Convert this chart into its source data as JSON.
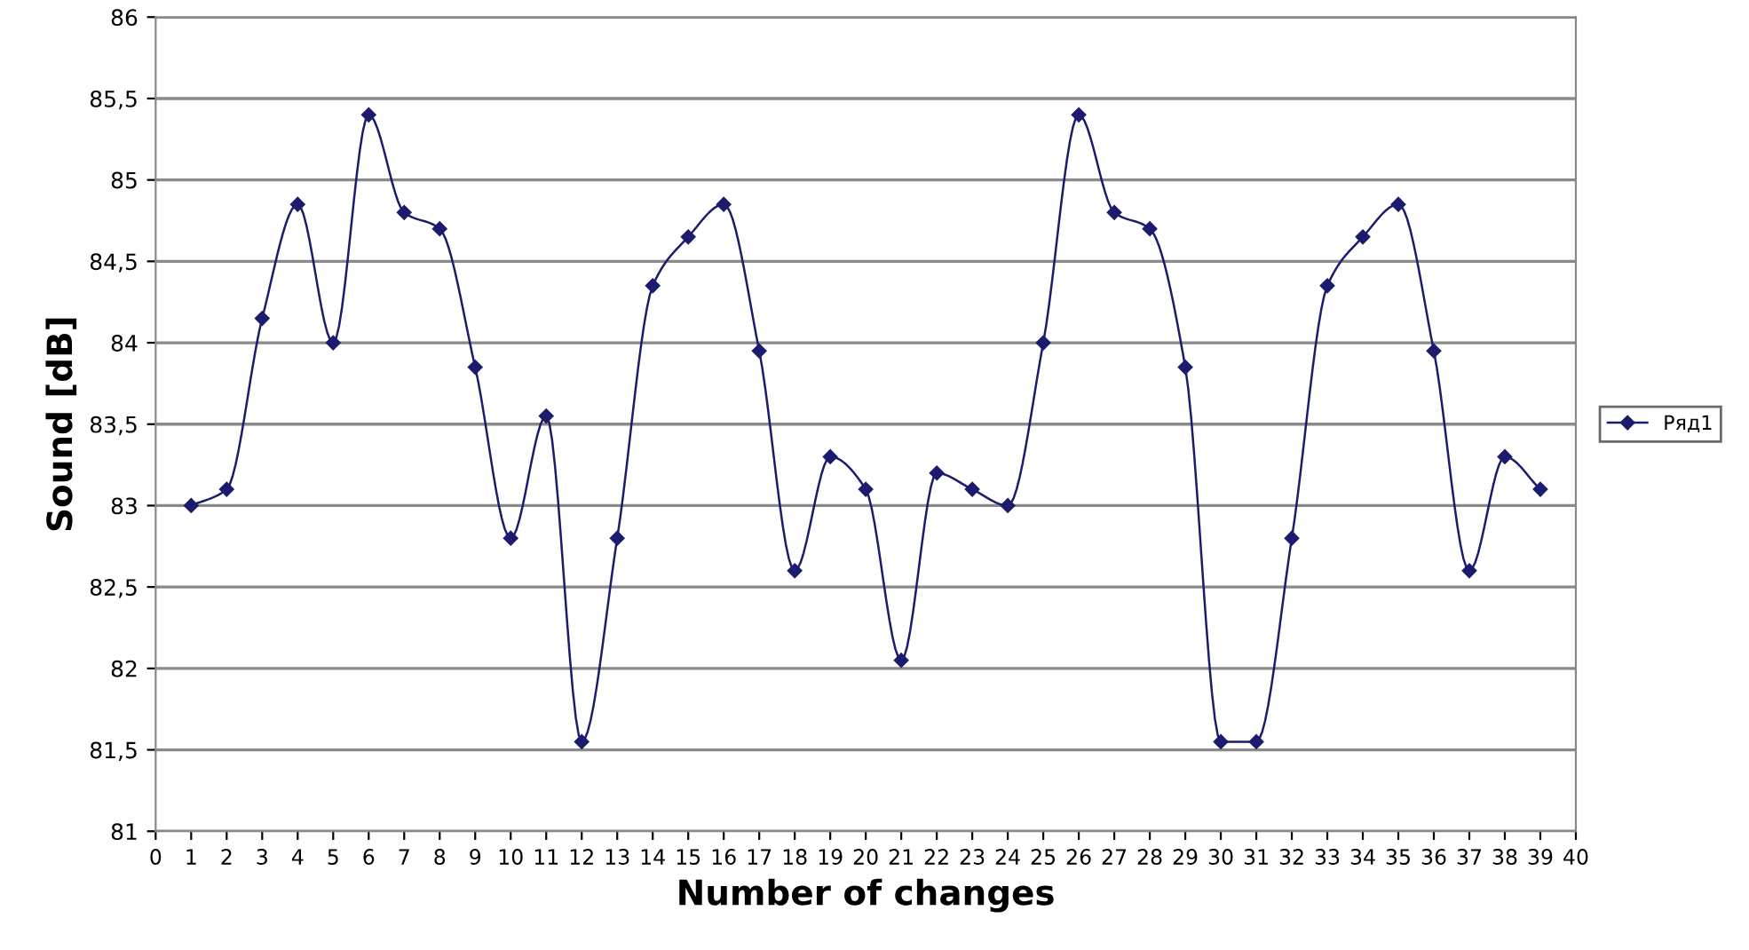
{
  "chart_data": {
    "type": "line",
    "xlabel": "Number of changes",
    "ylabel": "Sound [dB]",
    "x": [
      1,
      2,
      3,
      4,
      5,
      6,
      7,
      8,
      9,
      10,
      11,
      12,
      13,
      14,
      15,
      16,
      17,
      18,
      19,
      20,
      21,
      22,
      23,
      24,
      25,
      26,
      27,
      28,
      29,
      30,
      31,
      32,
      33,
      34,
      35,
      36,
      37,
      38,
      39
    ],
    "series": [
      {
        "name": "Ряд1",
        "color": "#1c1c6e",
        "values": [
          83.0,
          83.1,
          84.15,
          84.85,
          84.0,
          85.4,
          84.8,
          84.7,
          83.85,
          82.8,
          83.55,
          81.55,
          82.8,
          84.35,
          84.65,
          84.85,
          83.95,
          82.6,
          83.3,
          83.1,
          82.05,
          83.2,
          83.1,
          83.0,
          84.0,
          85.4,
          84.8,
          84.7,
          83.85,
          81.55,
          81.55,
          82.8,
          84.35,
          84.65,
          84.85,
          83.95,
          82.6,
          83.3,
          83.1
        ]
      }
    ],
    "xlim": [
      0,
      40
    ],
    "xticks": [
      0,
      1,
      2,
      3,
      4,
      5,
      6,
      7,
      8,
      9,
      10,
      11,
      12,
      13,
      14,
      15,
      16,
      17,
      18,
      19,
      20,
      21,
      22,
      23,
      24,
      25,
      26,
      27,
      28,
      29,
      30,
      31,
      32,
      33,
      34,
      35,
      36,
      37,
      38,
      39,
      40
    ],
    "ylim": [
      81,
      86
    ],
    "yticks": [
      81,
      {
        "value": 81.5,
        "label": "81,5"
      },
      82,
      {
        "value": 82.5,
        "label": "82,5"
      },
      83,
      {
        "value": 83.5,
        "label": "83,5"
      },
      84,
      {
        "value": 84.5,
        "label": "84,5"
      },
      85,
      {
        "value": 85.5,
        "label": "85,5"
      },
      86
    ],
    "grid": "y",
    "legend": "right",
    "marker": "diamond",
    "line_style": "solid"
  }
}
